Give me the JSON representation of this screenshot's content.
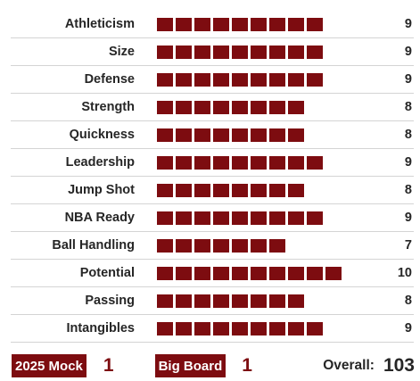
{
  "ratings": [
    {
      "label": "Athleticism",
      "score": "9",
      "level": 9
    },
    {
      "label": "Size",
      "score": "9",
      "level": 9
    },
    {
      "label": "Defense",
      "score": "9",
      "level": 9
    },
    {
      "label": "Strength",
      "score": "8",
      "level": 8
    },
    {
      "label": "Quickness",
      "score": "8",
      "level": 8
    },
    {
      "label": "Leadership",
      "score": "9",
      "level": 9
    },
    {
      "label": "Jump Shot",
      "score": "8",
      "level": 8
    },
    {
      "label": "NBA Ready",
      "score": "9",
      "level": 9
    },
    {
      "label": "Ball Handling",
      "score": "7",
      "level": 7
    },
    {
      "label": "Potential",
      "score": "10",
      "level": 10
    },
    {
      "label": "Passing",
      "score": "8",
      "level": 8
    },
    {
      "label": "Intangibles",
      "score": "9",
      "level": 9
    }
  ],
  "footer": {
    "mock_label": "2025 Mock",
    "mock_rank": "1",
    "bigboard_label": "Big Board",
    "bigboard_rank": "1",
    "overall_label": "Overall:",
    "overall_value": "103"
  },
  "colors": {
    "accent": "#7d0c10",
    "text": "#262626",
    "divider": "#d4d4d4"
  }
}
